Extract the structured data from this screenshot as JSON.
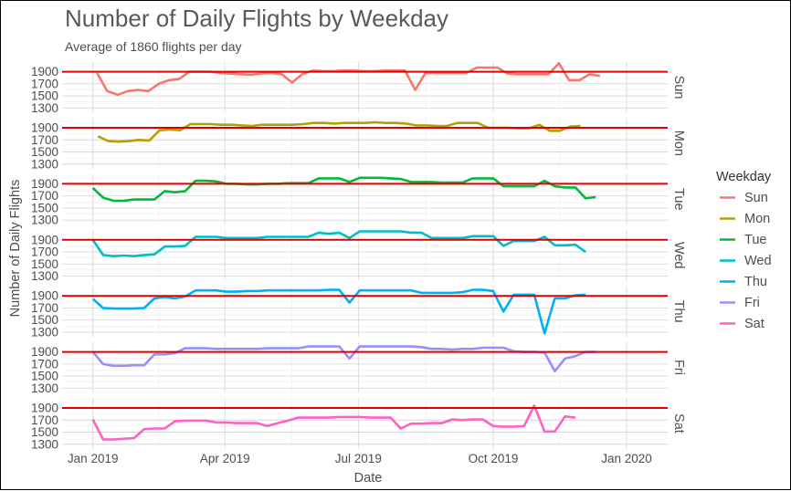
{
  "chart_data": {
    "type": "line",
    "title": "Number of Daily Flights by Weekday",
    "subtitle": "Average of 1860 flights per day",
    "xlabel": "Date",
    "ylabel": "Number of Daily Flights",
    "x_ticks": [
      "Jan 2019",
      "Apr 2019",
      "Jul 2019",
      "Oct 2019",
      "Jan 2020"
    ],
    "x_tick_weeks": [
      0,
      12.86,
      25.86,
      39,
      52
    ],
    "y_ticks": [
      1300,
      1500,
      1700,
      1900
    ],
    "ylim": [
      1230,
      2060
    ],
    "xlim": [
      -3,
      56
    ],
    "reference_line": {
      "value": 1900,
      "color": "#dd0000"
    },
    "legend_title": "Weekday",
    "series": [
      {
        "name": "Sun",
        "color": "#F8766D",
        "start_week": 0.4,
        "values": [
          1880,
          1580,
          1520,
          1580,
          1600,
          1580,
          1700,
          1760,
          1780,
          1900,
          1900,
          1900,
          1880,
          1870,
          1860,
          1850,
          1870,
          1880,
          1860,
          1720,
          1860,
          1920,
          1910,
          1910,
          1920,
          1920,
          1910,
          1910,
          1920,
          1920,
          1920,
          1600,
          1880,
          1880,
          1880,
          1880,
          1880,
          1970,
          1970,
          1970,
          1870,
          1860,
          1860,
          1860,
          1860,
          2040,
          1760,
          1760,
          1860,
          1830
        ]
      },
      {
        "name": "Mon",
        "color": "#B79F00",
        "start_week": 0.5,
        "values": [
          1760,
          1680,
          1670,
          1680,
          1700,
          1690,
          1860,
          1870,
          1860,
          1960,
          1960,
          1960,
          1950,
          1950,
          1940,
          1930,
          1950,
          1950,
          1950,
          1950,
          1960,
          1980,
          1980,
          1970,
          1980,
          1980,
          1980,
          1990,
          1980,
          1980,
          1970,
          1940,
          1940,
          1930,
          1930,
          1980,
          1980,
          1980,
          1900,
          1900,
          1900,
          1890,
          1890,
          1950,
          1850,
          1850,
          1920,
          1930
        ]
      },
      {
        "name": "Tue",
        "color": "#00BA38",
        "start_week": 0,
        "values": [
          1830,
          1670,
          1620,
          1620,
          1640,
          1640,
          1640,
          1780,
          1760,
          1780,
          1950,
          1950,
          1940,
          1900,
          1900,
          1890,
          1890,
          1900,
          1900,
          1910,
          1910,
          1910,
          1990,
          1990,
          1990,
          1930,
          2000,
          2000,
          2000,
          1990,
          1980,
          1930,
          1930,
          1930,
          1920,
          1920,
          1920,
          1990,
          1990,
          1990,
          1860,
          1860,
          1860,
          1860,
          1950,
          1860,
          1840,
          1840,
          1660,
          1680
        ]
      },
      {
        "name": "Wed",
        "color": "#00BFC4",
        "start_week": 0,
        "values": [
          1900,
          1650,
          1630,
          1640,
          1630,
          1650,
          1660,
          1790,
          1790,
          1800,
          1950,
          1950,
          1950,
          1930,
          1930,
          1930,
          1930,
          1950,
          1950,
          1950,
          1950,
          1950,
          2020,
          2000,
          2020,
          1930,
          2040,
          2040,
          2040,
          2040,
          2040,
          2020,
          2020,
          1930,
          1930,
          1930,
          1930,
          1960,
          1960,
          1960,
          1800,
          1880,
          1880,
          1880,
          1950,
          1810,
          1810,
          1820,
          1700
        ]
      },
      {
        "name": "Thu",
        "color": "#00B0F6",
        "start_week": 0,
        "values": [
          1850,
          1700,
          1690,
          1690,
          1690,
          1700,
          1860,
          1880,
          1860,
          1890,
          1990,
          1990,
          1990,
          1970,
          1970,
          1980,
          1980,
          1990,
          1990,
          1990,
          1990,
          1990,
          1990,
          2000,
          2000,
          1790,
          1990,
          1990,
          1990,
          1990,
          1990,
          1990,
          1950,
          1950,
          1950,
          1950,
          1960,
          2000,
          2000,
          1980,
          1640,
          1920,
          1920,
          1920,
          1280,
          1860,
          1860,
          1910,
          1920
        ]
      },
      {
        "name": "Fri",
        "color": "#9590FF",
        "start_week": 0,
        "values": [
          1900,
          1700,
          1670,
          1670,
          1680,
          1680,
          1860,
          1860,
          1880,
          1960,
          1960,
          1960,
          1950,
          1950,
          1950,
          1950,
          1950,
          1960,
          1960,
          1960,
          1960,
          1990,
          1990,
          1990,
          1990,
          1790,
          1990,
          1990,
          1990,
          1990,
          1990,
          1990,
          1980,
          1950,
          1950,
          1940,
          1950,
          1950,
          1970,
          1970,
          1970,
          1910,
          1900,
          1900,
          1890,
          1580,
          1790,
          1830,
          1900,
          1900
        ]
      },
      {
        "name": "Sat",
        "color": "#FF61C3",
        "start_week": 0,
        "values": [
          1710,
          1380,
          1380,
          1390,
          1400,
          1550,
          1560,
          1560,
          1680,
          1690,
          1690,
          1690,
          1660,
          1660,
          1650,
          1650,
          1650,
          1600,
          1650,
          1690,
          1740,
          1740,
          1740,
          1740,
          1750,
          1750,
          1750,
          1740,
          1740,
          1740,
          1560,
          1640,
          1640,
          1650,
          1650,
          1710,
          1700,
          1710,
          1710,
          1600,
          1590,
          1590,
          1600,
          1940,
          1510,
          1510,
          1760,
          1740
        ]
      }
    ]
  }
}
